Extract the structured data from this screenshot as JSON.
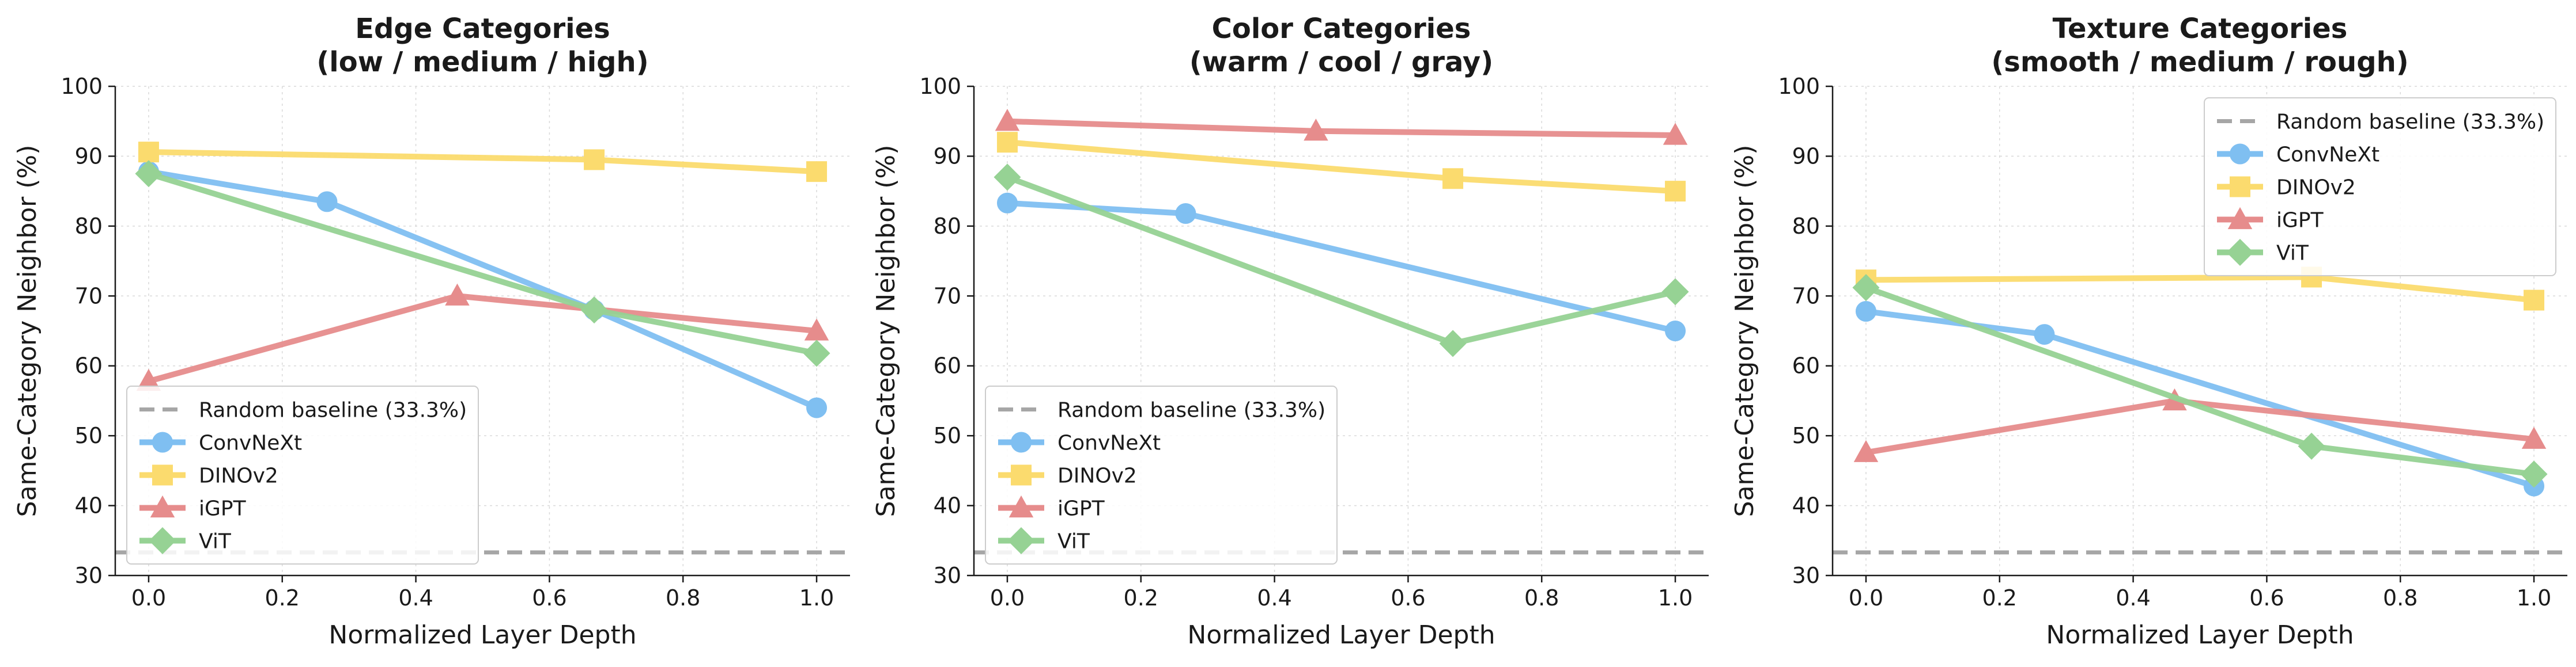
{
  "chart_data": [
    {
      "type": "line",
      "title": "Edge Categories\n(low / medium / high)",
      "xlabel": "Normalized Layer Depth",
      "ylabel": "Same-Category Neighbor (%)",
      "xlim": [
        -0.05,
        1.05
      ],
      "ylim": [
        30,
        100
      ],
      "xticks": [
        0.0,
        0.2,
        0.4,
        0.6,
        0.8,
        1.0
      ],
      "xtick_labels": [
        "0.0",
        "0.2",
        "0.4",
        "0.6",
        "0.8",
        "1.0"
      ],
      "yticks": [
        30,
        40,
        50,
        60,
        70,
        80,
        90,
        100
      ],
      "ytick_labels": [
        "30",
        "40",
        "50",
        "60",
        "70",
        "80",
        "90",
        "100"
      ],
      "grid": true,
      "legend_position": "lower-left",
      "baseline": {
        "name": "Random baseline (33.3%)",
        "value": 33.3,
        "color": "#a6a6a6"
      },
      "series": [
        {
          "name": "ConvNeXt",
          "marker": "circle",
          "color": "#7fbff1",
          "x": [
            0.0,
            0.267,
            0.667,
            1.0
          ],
          "y": [
            87.8,
            83.5,
            68.0,
            54.0
          ]
        },
        {
          "name": "DINOv2",
          "marker": "square",
          "color": "#fbdb6e",
          "x": [
            0.0,
            0.667,
            1.0
          ],
          "y": [
            90.6,
            89.5,
            87.8
          ]
        },
        {
          "name": "iGPT",
          "marker": "triangle",
          "color": "#e68c8c",
          "x": [
            0.0,
            0.462,
            1.0
          ],
          "y": [
            57.8,
            70.0,
            65.0
          ]
        },
        {
          "name": "ViT",
          "marker": "diamond",
          "color": "#96d294",
          "x": [
            0.0,
            0.667,
            1.0
          ],
          "y": [
            87.5,
            68.0,
            61.8
          ]
        }
      ]
    },
    {
      "type": "line",
      "title": "Color Categories\n(warm / cool / gray)",
      "xlabel": "Normalized Layer Depth",
      "ylabel": "Same-Category Neighbor (%)",
      "xlim": [
        -0.05,
        1.05
      ],
      "ylim": [
        30,
        100
      ],
      "xticks": [
        0.0,
        0.2,
        0.4,
        0.6,
        0.8,
        1.0
      ],
      "xtick_labels": [
        "0.0",
        "0.2",
        "0.4",
        "0.6",
        "0.8",
        "1.0"
      ],
      "yticks": [
        30,
        40,
        50,
        60,
        70,
        80,
        90,
        100
      ],
      "ytick_labels": [
        "30",
        "40",
        "50",
        "60",
        "70",
        "80",
        "90",
        "100"
      ],
      "grid": true,
      "legend_position": "lower-left",
      "baseline": {
        "name": "Random baseline (33.3%)",
        "value": 33.3,
        "color": "#a6a6a6"
      },
      "series": [
        {
          "name": "ConvNeXt",
          "marker": "circle",
          "color": "#7fbff1",
          "x": [
            0.0,
            0.267,
            1.0
          ],
          "y": [
            83.3,
            81.8,
            65.0
          ]
        },
        {
          "name": "DINOv2",
          "marker": "square",
          "color": "#fbdb6e",
          "x": [
            0.0,
            0.667,
            1.0
          ],
          "y": [
            92.0,
            86.8,
            85.0
          ]
        },
        {
          "name": "iGPT",
          "marker": "triangle",
          "color": "#e68c8c",
          "x": [
            0.0,
            0.462,
            1.0
          ],
          "y": [
            95.0,
            93.6,
            93.0
          ]
        },
        {
          "name": "ViT",
          "marker": "diamond",
          "color": "#96d294",
          "x": [
            0.0,
            0.667,
            1.0
          ],
          "y": [
            87.0,
            63.2,
            70.6
          ]
        }
      ]
    },
    {
      "type": "line",
      "title": "Texture Categories\n(smooth / medium / rough)",
      "xlabel": "Normalized Layer Depth",
      "ylabel": "Same-Category Neighbor (%)",
      "xlim": [
        -0.05,
        1.05
      ],
      "ylim": [
        30,
        100
      ],
      "xticks": [
        0.0,
        0.2,
        0.4,
        0.6,
        0.8,
        1.0
      ],
      "xtick_labels": [
        "0.0",
        "0.2",
        "0.4",
        "0.6",
        "0.8",
        "1.0"
      ],
      "yticks": [
        30,
        40,
        50,
        60,
        70,
        80,
        90,
        100
      ],
      "ytick_labels": [
        "30",
        "40",
        "50",
        "60",
        "70",
        "80",
        "90",
        "100"
      ],
      "grid": true,
      "legend_position": "upper-right",
      "baseline": {
        "name": "Random baseline (33.3%)",
        "value": 33.3,
        "color": "#a6a6a6"
      },
      "series": [
        {
          "name": "ConvNeXt",
          "marker": "circle",
          "color": "#7fbff1",
          "x": [
            0.0,
            0.267,
            1.0
          ],
          "y": [
            67.8,
            64.5,
            42.8
          ]
        },
        {
          "name": "DINOv2",
          "marker": "square",
          "color": "#fbdb6e",
          "x": [
            0.0,
            0.667,
            1.0
          ],
          "y": [
            72.3,
            72.7,
            69.4
          ]
        },
        {
          "name": "iGPT",
          "marker": "triangle",
          "color": "#e68c8c",
          "x": [
            0.0,
            0.462,
            1.0
          ],
          "y": [
            47.6,
            55.0,
            49.5
          ]
        },
        {
          "name": "ViT",
          "marker": "diamond",
          "color": "#96d294",
          "x": [
            0.0,
            0.667,
            1.0
          ],
          "y": [
            71.2,
            48.5,
            44.5
          ]
        }
      ]
    }
  ]
}
